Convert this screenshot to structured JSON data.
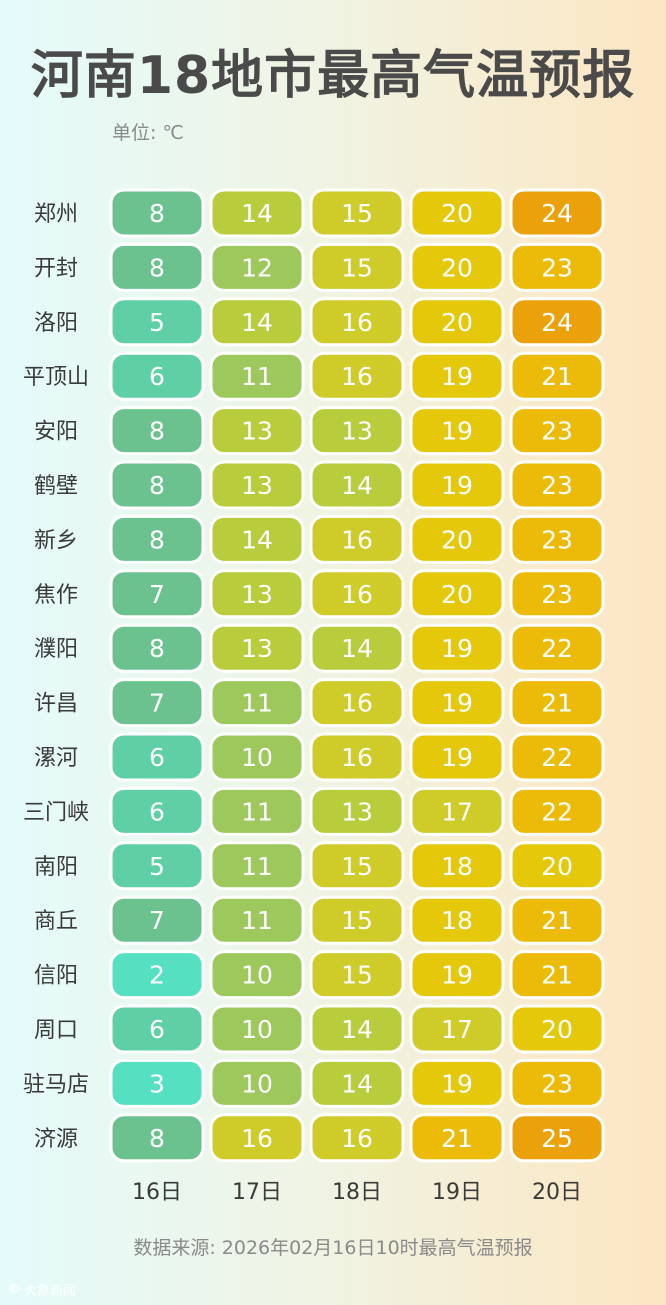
{
  "header": {
    "title": "河南18地市最高气温预报",
    "unit": "单位: ℃"
  },
  "footer": {
    "source": "数据来源: 2026年02月16日10时最高气温预报",
    "logo_text": "大象新闻",
    "logo_mark": "©"
  },
  "colors": {
    "scale": [
      "#56e0c2",
      "#5fcfa6",
      "#6cc28f",
      "#9cc85c",
      "#b8cc3c",
      "#cfcb28",
      "#e6c80a",
      "#ebbb08",
      "#eba10a"
    ],
    "cell_border": "#ffffff",
    "cell_text": "#ffffff"
  },
  "chart_data": {
    "type": "heatmap",
    "x": [
      "16日",
      "17日",
      "18日",
      "19日",
      "20日"
    ],
    "y": [
      "郑州",
      "开封",
      "洛阳",
      "平顶山",
      "安阳",
      "鹤壁",
      "新乡",
      "焦作",
      "濮阳",
      "许昌",
      "漯河",
      "三门峡",
      "南阳",
      "商丘",
      "信阳",
      "周口",
      "驻马店",
      "济源"
    ],
    "values": [
      [
        8,
        14,
        15,
        20,
        24
      ],
      [
        8,
        12,
        15,
        20,
        23
      ],
      [
        5,
        14,
        16,
        20,
        24
      ],
      [
        6,
        11,
        16,
        19,
        21
      ],
      [
        8,
        13,
        13,
        19,
        23
      ],
      [
        8,
        13,
        14,
        19,
        23
      ],
      [
        8,
        14,
        16,
        20,
        23
      ],
      [
        7,
        13,
        16,
        20,
        23
      ],
      [
        8,
        13,
        14,
        19,
        22
      ],
      [
        7,
        11,
        16,
        19,
        21
      ],
      [
        6,
        10,
        16,
        19,
        22
      ],
      [
        6,
        11,
        13,
        17,
        22
      ],
      [
        5,
        11,
        15,
        18,
        20
      ],
      [
        7,
        11,
        15,
        18,
        21
      ],
      [
        2,
        10,
        15,
        19,
        21
      ],
      [
        6,
        10,
        14,
        17,
        20
      ],
      [
        3,
        10,
        14,
        19,
        23
      ],
      [
        8,
        16,
        16,
        21,
        25
      ]
    ],
    "value_range": [
      2,
      25
    ]
  }
}
